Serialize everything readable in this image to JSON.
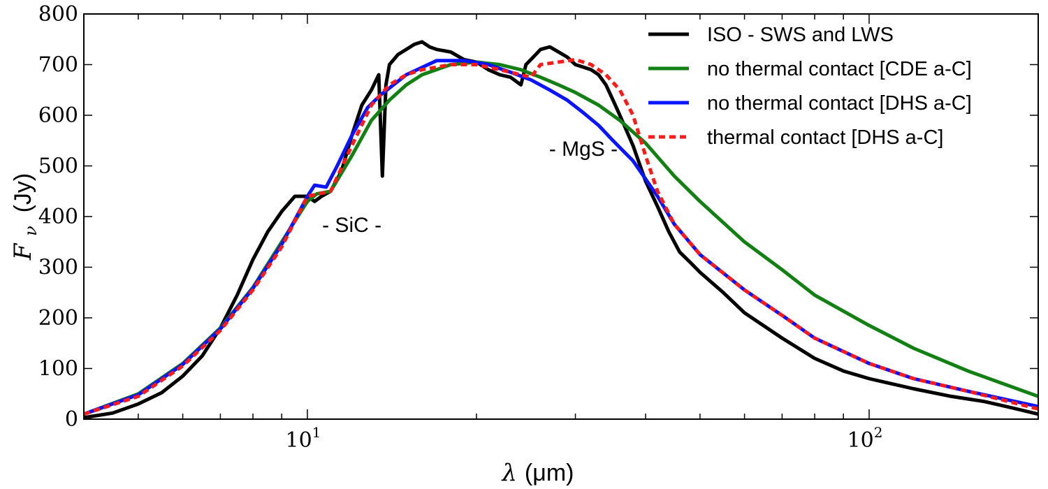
{
  "chart_data": {
    "type": "line",
    "title": "",
    "xlabel": "λ (μm)",
    "xlabel_parts": {
      "symbol": "λ",
      "unit": "(μm)"
    },
    "ylabel": "Fν (Jy)",
    "ylabel_parts": {
      "symbol": "F",
      "subscript": "ν",
      "unit": "(Jy)"
    },
    "xscale": "log",
    "xlim": [
      4.0,
      200
    ],
    "ylim": [
      0,
      800
    ],
    "yticks": [
      0,
      100,
      200,
      300,
      400,
      500,
      600,
      700,
      800
    ],
    "xticks_major": [
      {
        "value": 10,
        "base": "10",
        "exp": "1"
      },
      {
        "value": 100,
        "base": "10",
        "exp": "2"
      }
    ],
    "legend_placement": "top-right",
    "annotations": [
      {
        "text": "- SiC -",
        "x": 12.0,
        "y": 370
      },
      {
        "text": "- MgS -",
        "x": 31.0,
        "y": 520
      }
    ],
    "series": [
      {
        "name": "ISO - SWS and LWS",
        "color": "#000000",
        "style": "solid",
        "x": [
          4.0,
          4.5,
          5.0,
          5.5,
          6.0,
          6.5,
          7.0,
          7.5,
          8.0,
          8.5,
          9.0,
          9.5,
          10.0,
          10.3,
          10.6,
          11.0,
          11.5,
          12.0,
          12.5,
          13.0,
          13.4,
          13.6,
          13.8,
          14.0,
          14.5,
          15.0,
          15.5,
          16.0,
          16.5,
          17.0,
          18.0,
          19.0,
          20.0,
          21.0,
          22.0,
          23.0,
          24.0,
          24.5,
          25.0,
          26.0,
          27.0,
          28.0,
          29.0,
          30.0,
          31.0,
          32.0,
          33.0,
          34.0,
          35.0,
          36.0,
          38.0,
          40.0,
          42.0,
          44.0,
          46.0,
          48.0,
          50.0,
          55.0,
          60.0,
          70.0,
          80.0,
          90.0,
          100.0,
          120.0,
          140.0,
          160.0,
          180.0,
          200.0
        ],
        "y": [
          3,
          12,
          30,
          52,
          85,
          125,
          180,
          245,
          315,
          370,
          410,
          440,
          440,
          430,
          440,
          450,
          490,
          560,
          620,
          650,
          680,
          480,
          660,
          700,
          720,
          730,
          740,
          745,
          735,
          730,
          725,
          710,
          705,
          690,
          680,
          675,
          660,
          700,
          710,
          730,
          735,
          725,
          715,
          700,
          695,
          690,
          680,
          660,
          630,
          600,
          540,
          470,
          420,
          370,
          330,
          310,
          290,
          250,
          210,
          160,
          120,
          95,
          80,
          60,
          45,
          35,
          22,
          10
        ]
      },
      {
        "name": "no thermal contact [CDE a-C]",
        "color": "#138013",
        "style": "solid",
        "x": [
          4.0,
          5.0,
          6.0,
          7.0,
          8.0,
          9.0,
          10.0,
          10.4,
          11.0,
          12.0,
          13.0,
          14.0,
          15.0,
          16.0,
          18.0,
          20.0,
          22.0,
          24.0,
          26.0,
          28.0,
          30.0,
          33.0,
          36.0,
          40.0,
          45.0,
          50.0,
          60.0,
          70.0,
          80.0,
          100.0,
          120.0,
          150.0,
          200.0
        ],
        "y": [
          10,
          50,
          110,
          180,
          260,
          350,
          430,
          445,
          450,
          520,
          590,
          630,
          660,
          680,
          700,
          705,
          700,
          690,
          675,
          660,
          645,
          620,
          590,
          545,
          480,
          430,
          350,
          295,
          245,
          185,
          140,
          95,
          45
        ]
      },
      {
        "name": "no thermal contact [DHS a-C]",
        "color": "#0a14ff",
        "style": "solid",
        "x": [
          4.0,
          5.0,
          6.0,
          7.0,
          8.0,
          9.0,
          10.0,
          10.3,
          10.8,
          11.3,
          12.0,
          12.8,
          13.5,
          15.0,
          17.0,
          19.0,
          21.0,
          23.0,
          25.0,
          27.0,
          29.0,
          31.0,
          33.0,
          35.0,
          38.0,
          42.0,
          45.0,
          50.0,
          60.0,
          70.0,
          80.0,
          100.0,
          120.0,
          150.0,
          200.0
        ],
        "y": [
          10,
          48,
          108,
          178,
          258,
          345,
          440,
          462,
          458,
          500,
          560,
          615,
          640,
          680,
          708,
          708,
          700,
          685,
          670,
          650,
          630,
          605,
          580,
          550,
          510,
          440,
          385,
          325,
          255,
          205,
          160,
          110,
          80,
          55,
          25
        ]
      },
      {
        "name": "thermal contact [DHS a-C]",
        "color": "#ff1a1a",
        "style": "dashed",
        "x": [
          4.0,
          5.0,
          6.0,
          7.0,
          8.0,
          9.0,
          10.0,
          10.5,
          11.0,
          12.0,
          13.0,
          14.0,
          15.0,
          16.0,
          18.0,
          20.0,
          22.0,
          24.0,
          25.0,
          26.0,
          28.0,
          30.0,
          32.0,
          34.0,
          36.0,
          38.0,
          40.0,
          42.0,
          45.0,
          50.0,
          60.0,
          70.0,
          80.0,
          100.0,
          120.0,
          150.0,
          200.0
        ],
        "y": [
          10,
          45,
          105,
          175,
          255,
          340,
          440,
          445,
          450,
          540,
          620,
          660,
          680,
          690,
          700,
          700,
          690,
          680,
          675,
          700,
          705,
          710,
          700,
          680,
          650,
          600,
          520,
          450,
          385,
          325,
          255,
          205,
          160,
          110,
          80,
          55,
          20
        ]
      }
    ]
  }
}
